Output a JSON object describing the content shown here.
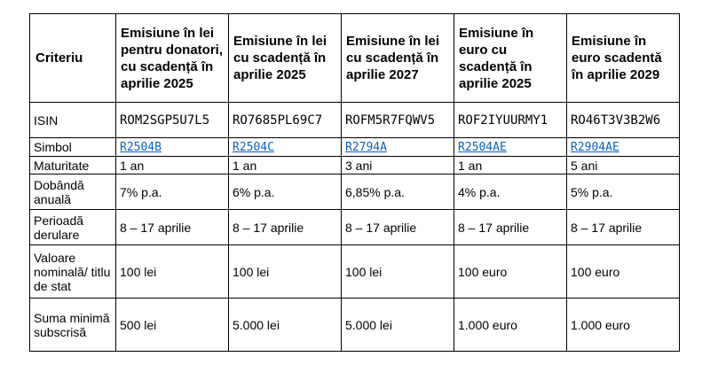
{
  "table": {
    "criteria_header": "Criteriu",
    "columns": [
      "Emisiune în lei pentru donatori, cu scadență în aprilie 2025",
      "Emisiune în lei cu scadență în aprilie 2025",
      "Emisiune în lei cu scadență în aprilie 2027",
      "Emisiune în euro cu scadență în aprilie 2025",
      "Emisiune în euro scadentă în aprilie 2029"
    ],
    "rows": {
      "isin": {
        "label": "ISIN",
        "values": [
          "ROM2SGP5U7L5",
          "RO7685PL69C7",
          "ROFM5R7FQWV5",
          "ROF2IYUURMY1",
          "RO46T3V3B2W6"
        ]
      },
      "simbol": {
        "label": "Simbol",
        "values": [
          "R2504B",
          "R2504C",
          "R2794A",
          "R2504AE",
          "R2904AE"
        ]
      },
      "maturitate": {
        "label": "Maturitate",
        "values": [
          "1 an",
          "1 an",
          "3 ani",
          "1 an",
          "5 ani"
        ]
      },
      "dobanda": {
        "label": "Dobândă anuală",
        "values": [
          "7% p.a.",
          "6% p.a.",
          "6,85% p.a.",
          "4% p.a.",
          "5% p.a."
        ]
      },
      "perioada": {
        "label": "Perioadă derulare",
        "values": [
          "8 – 17 aprilie",
          "8 – 17 aprilie",
          "8 – 17 aprilie",
          "8 – 17 aprilie",
          "8 – 17 aprilie"
        ]
      },
      "valoare": {
        "label": "Valoare nominală/ titlu de stat",
        "values": [
          "100 lei",
          "100 lei",
          "100 lei",
          "100 euro",
          "100 euro"
        ]
      },
      "suma": {
        "label": "Suma minimă subscrisă",
        "values": [
          "500 lei",
          "5.000 lei",
          "5.000 lei",
          "1.000 euro",
          "1.000 euro"
        ]
      }
    }
  },
  "colors": {
    "link": "#0563c1",
    "border": "#000000",
    "text": "#000000"
  }
}
